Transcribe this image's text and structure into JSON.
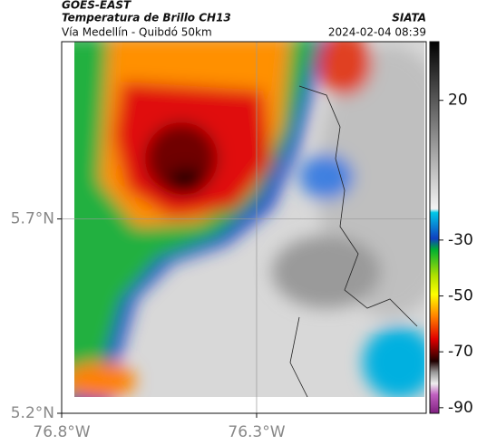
{
  "header": {
    "source": "GOES-EAST",
    "title": "Temperatura de Brillo CH13",
    "brand": "SIATA",
    "subtitle": "Vía Medellín - Quibdó 50km",
    "timestamp": "2024-02-04 08:39"
  },
  "map": {
    "lonlim": [
      -76.8,
      -75.865
    ],
    "latlim": [
      5.2,
      6.156
    ],
    "xticks": [
      {
        "value": -76.8,
        "label": "76.8°W"
      },
      {
        "value": -76.3,
        "label": "76.3°W"
      }
    ],
    "yticks": [
      {
        "value": 5.7,
        "label": "5.7°N"
      },
      {
        "value": 5.2,
        "label": "5.2°N"
      }
    ],
    "grid": true
  },
  "colorbar": {
    "lim": [
      -92,
      41
    ],
    "ticks": [
      20,
      -30,
      -50,
      -70,
      -90
    ]
  }
}
